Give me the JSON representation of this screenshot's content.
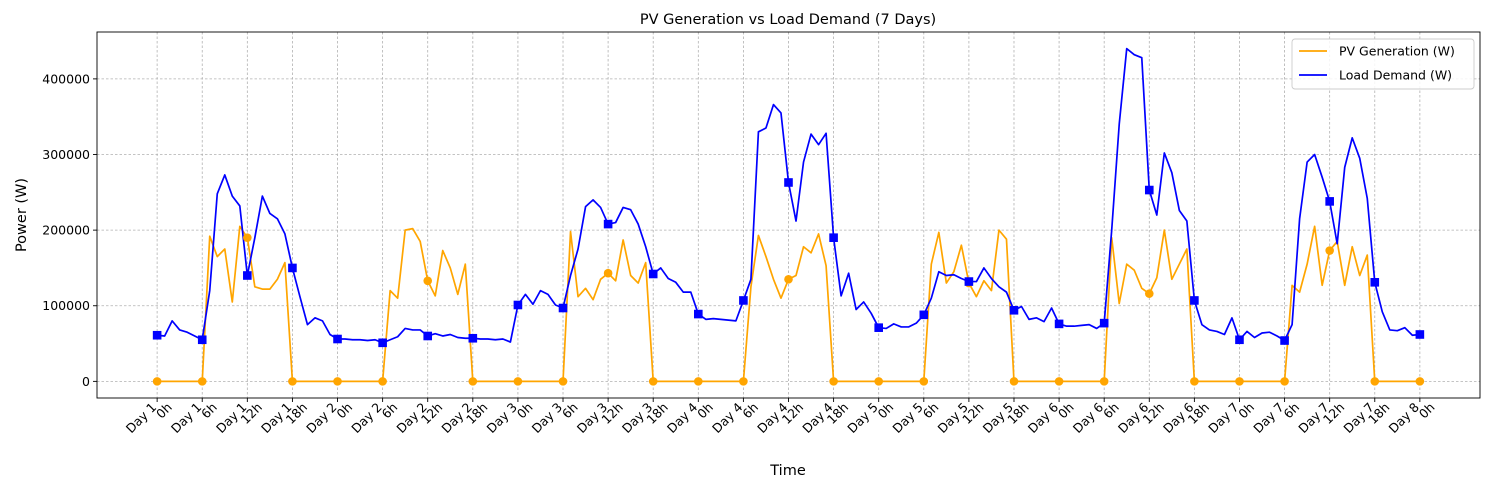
{
  "colors": {
    "pv": "#ffa500",
    "load": "#0000ff",
    "grid": "#b0b0b0"
  },
  "chart_data": {
    "type": "line",
    "title": "PV Generation vs Load Demand (7 Days)",
    "xlabel": "Time",
    "ylabel": "Power (W)",
    "xlim": [
      -8,
      176
    ],
    "ylim": [
      -22000,
      462000
    ],
    "grid": true,
    "legend_position": "top-right",
    "yticks": [
      0,
      100000,
      200000,
      300000,
      400000
    ],
    "ytick_labels": [
      "0",
      "100000",
      "200000",
      "300000",
      "400000"
    ],
    "xticks": [
      0,
      6,
      12,
      18,
      24,
      30,
      36,
      42,
      48,
      54,
      60,
      66,
      72,
      78,
      84,
      90,
      96,
      102,
      108,
      114,
      120,
      126,
      132,
      138,
      144,
      150,
      156,
      162,
      168
    ],
    "xtick_labels": [
      [
        "Day 1",
        "0h"
      ],
      [
        "Day 1",
        "6h"
      ],
      [
        "Day 1",
        "12h"
      ],
      [
        "Day 1",
        "18h"
      ],
      [
        "Day 2",
        "0h"
      ],
      [
        "Day 2",
        "6h"
      ],
      [
        "Day 2",
        "12h"
      ],
      [
        "Day 2",
        "18h"
      ],
      [
        "Day 3",
        "0h"
      ],
      [
        "Day 3",
        "6h"
      ],
      [
        "Day 3",
        "12h"
      ],
      [
        "Day 3",
        "18h"
      ],
      [
        "Day 4",
        "0h"
      ],
      [
        "Day 4",
        "6h"
      ],
      [
        "Day 4",
        "12h"
      ],
      [
        "Day 4",
        "18h"
      ],
      [
        "Day 5",
        "0h"
      ],
      [
        "Day 5",
        "6h"
      ],
      [
        "Day 5",
        "12h"
      ],
      [
        "Day 5",
        "18h"
      ],
      [
        "Day 6",
        "0h"
      ],
      [
        "Day 6",
        "6h"
      ],
      [
        "Day 6",
        "12h"
      ],
      [
        "Day 6",
        "18h"
      ],
      [
        "Day 7",
        "0h"
      ],
      [
        "Day 7",
        "6h"
      ],
      [
        "Day 7",
        "12h"
      ],
      [
        "Day 7",
        "18h"
      ],
      [
        "Day 8",
        "0h"
      ]
    ],
    "series": [
      {
        "name": "PV Generation (W)",
        "color": "#ffa500",
        "marker": "circle",
        "points": [
          [
            0,
            0
          ],
          [
            6,
            0
          ],
          [
            7,
            192000
          ],
          [
            8,
            165000
          ],
          [
            9,
            175000
          ],
          [
            10,
            105000
          ],
          [
            11,
            205000
          ],
          [
            12,
            190000
          ],
          [
            13,
            125000
          ],
          [
            14,
            122000
          ],
          [
            15,
            122000
          ],
          [
            16,
            135000
          ],
          [
            17,
            157000
          ],
          [
            18,
            0
          ],
          [
            24,
            0
          ],
          [
            30,
            0
          ],
          [
            31,
            120000
          ],
          [
            32,
            110000
          ],
          [
            33,
            200000
          ],
          [
            34,
            202000
          ],
          [
            35,
            185000
          ],
          [
            36,
            133000
          ],
          [
            37,
            113000
          ],
          [
            38,
            173000
          ],
          [
            39,
            150000
          ],
          [
            40,
            115000
          ],
          [
            41,
            155000
          ],
          [
            42,
            0
          ],
          [
            48,
            0
          ],
          [
            54,
            0
          ],
          [
            55,
            198000
          ],
          [
            56,
            112000
          ],
          [
            57,
            123000
          ],
          [
            58,
            108000
          ],
          [
            59,
            135000
          ],
          [
            60,
            143000
          ],
          [
            61,
            133000
          ],
          [
            62,
            187000
          ],
          [
            63,
            140000
          ],
          [
            64,
            130000
          ],
          [
            65,
            157000
          ],
          [
            66,
            0
          ],
          [
            72,
            0
          ],
          [
            78,
            0
          ],
          [
            79,
            125000
          ],
          [
            80,
            193000
          ],
          [
            81,
            165000
          ],
          [
            82,
            135000
          ],
          [
            83,
            110000
          ],
          [
            84,
            135000
          ],
          [
            85,
            140000
          ],
          [
            86,
            178000
          ],
          [
            87,
            170000
          ],
          [
            88,
            195000
          ],
          [
            89,
            153000
          ],
          [
            90,
            0
          ],
          [
            96,
            0
          ],
          [
            102,
            0
          ],
          [
            103,
            155000
          ],
          [
            104,
            197000
          ],
          [
            105,
            130000
          ],
          [
            106,
            145000
          ],
          [
            107,
            180000
          ],
          [
            108,
            130000
          ],
          [
            109,
            112000
          ],
          [
            110,
            133000
          ],
          [
            111,
            120000
          ],
          [
            112,
            200000
          ],
          [
            113,
            188000
          ],
          [
            114,
            0
          ],
          [
            120,
            0
          ],
          [
            126,
            0
          ],
          [
            127,
            190000
          ],
          [
            128,
            103000
          ],
          [
            129,
            155000
          ],
          [
            130,
            147000
          ],
          [
            131,
            123000
          ],
          [
            132,
            116000
          ],
          [
            133,
            137000
          ],
          [
            134,
            200000
          ],
          [
            135,
            135000
          ],
          [
            136,
            155000
          ],
          [
            137,
            175000
          ],
          [
            138,
            0
          ],
          [
            144,
            0
          ],
          [
            150,
            0
          ],
          [
            151,
            127000
          ],
          [
            152,
            118000
          ],
          [
            153,
            155000
          ],
          [
            154,
            205000
          ],
          [
            155,
            127000
          ],
          [
            156,
            173000
          ],
          [
            157,
            185000
          ],
          [
            158,
            127000
          ],
          [
            159,
            178000
          ],
          [
            160,
            140000
          ],
          [
            161,
            167000
          ],
          [
            162,
            0
          ],
          [
            168,
            0
          ]
        ],
        "markers_at": [
          0,
          6,
          12,
          18,
          24,
          30,
          36,
          42,
          48,
          54,
          60,
          66,
          72,
          78,
          84,
          90,
          96,
          102,
          108,
          114,
          120,
          126,
          132,
          138,
          144,
          150,
          156,
          162,
          168
        ]
      },
      {
        "name": "Load Demand (W)",
        "color": "#0000ff",
        "marker": "square",
        "points": [
          [
            0,
            61000
          ],
          [
            1,
            60000
          ],
          [
            2,
            80000
          ],
          [
            3,
            68000
          ],
          [
            4,
            65000
          ],
          [
            5,
            60000
          ],
          [
            6,
            55000
          ],
          [
            7,
            120000
          ],
          [
            8,
            248000
          ],
          [
            9,
            273000
          ],
          [
            10,
            245000
          ],
          [
            11,
            232000
          ],
          [
            12,
            140000
          ],
          [
            13,
            190000
          ],
          [
            14,
            245000
          ],
          [
            15,
            222000
          ],
          [
            16,
            215000
          ],
          [
            17,
            195000
          ],
          [
            18,
            150000
          ],
          [
            19,
            112000
          ],
          [
            20,
            75000
          ],
          [
            21,
            84000
          ],
          [
            22,
            80000
          ],
          [
            23,
            62000
          ],
          [
            24,
            56000
          ],
          [
            25,
            56000
          ],
          [
            26,
            55000
          ],
          [
            27,
            55000
          ],
          [
            28,
            54000
          ],
          [
            29,
            55000
          ],
          [
            30,
            51000
          ],
          [
            31,
            55000
          ],
          [
            32,
            59000
          ],
          [
            33,
            70000
          ],
          [
            34,
            68000
          ],
          [
            35,
            68000
          ],
          [
            36,
            60000
          ],
          [
            37,
            63000
          ],
          [
            38,
            60000
          ],
          [
            39,
            62000
          ],
          [
            40,
            58000
          ],
          [
            41,
            57000
          ],
          [
            42,
            57000
          ],
          [
            43,
            56000
          ],
          [
            44,
            56000
          ],
          [
            45,
            55000
          ],
          [
            46,
            56000
          ],
          [
            47,
            52000
          ],
          [
            48,
            101000
          ],
          [
            49,
            115000
          ],
          [
            50,
            102000
          ],
          [
            51,
            120000
          ],
          [
            52,
            115000
          ],
          [
            53,
            101000
          ],
          [
            54,
            97000
          ],
          [
            55,
            140000
          ],
          [
            56,
            175000
          ],
          [
            57,
            231000
          ],
          [
            58,
            240000
          ],
          [
            59,
            230000
          ],
          [
            60,
            208000
          ],
          [
            61,
            210000
          ],
          [
            62,
            230000
          ],
          [
            63,
            227000
          ],
          [
            64,
            208000
          ],
          [
            65,
            178000
          ],
          [
            66,
            142000
          ],
          [
            67,
            150000
          ],
          [
            68,
            136000
          ],
          [
            69,
            131000
          ],
          [
            70,
            118000
          ],
          [
            71,
            118000
          ],
          [
            72,
            89000
          ],
          [
            73,
            82000
          ],
          [
            74,
            83000
          ],
          [
            75,
            82000
          ],
          [
            76,
            81000
          ],
          [
            77,
            80000
          ],
          [
            78,
            107000
          ],
          [
            79,
            135000
          ],
          [
            80,
            330000
          ],
          [
            81,
            335000
          ],
          [
            82,
            366000
          ],
          [
            83,
            355000
          ],
          [
            84,
            263000
          ],
          [
            85,
            212000
          ],
          [
            86,
            290000
          ],
          [
            87,
            327000
          ],
          [
            88,
            313000
          ],
          [
            89,
            328000
          ],
          [
            90,
            190000
          ],
          [
            91,
            113000
          ],
          [
            92,
            143000
          ],
          [
            93,
            95000
          ],
          [
            94,
            105000
          ],
          [
            95,
            90000
          ],
          [
            96,
            71000
          ],
          [
            97,
            70000
          ],
          [
            98,
            76000
          ],
          [
            99,
            72000
          ],
          [
            100,
            72000
          ],
          [
            101,
            77000
          ],
          [
            102,
            88000
          ],
          [
            103,
            110000
          ],
          [
            104,
            145000
          ],
          [
            105,
            140000
          ],
          [
            106,
            141000
          ],
          [
            107,
            136000
          ],
          [
            108,
            132000
          ],
          [
            109,
            132000
          ],
          [
            110,
            150000
          ],
          [
            111,
            136000
          ],
          [
            112,
            125000
          ],
          [
            113,
            118000
          ],
          [
            114,
            94000
          ],
          [
            115,
            99000
          ],
          [
            116,
            82000
          ],
          [
            117,
            84000
          ],
          [
            118,
            79000
          ],
          [
            119,
            97000
          ],
          [
            120,
            76000
          ],
          [
            121,
            73000
          ],
          [
            122,
            73000
          ],
          [
            123,
            74000
          ],
          [
            124,
            75000
          ],
          [
            125,
            70000
          ],
          [
            126,
            77000
          ],
          [
            127,
            200000
          ],
          [
            128,
            340000
          ],
          [
            129,
            440000
          ],
          [
            130,
            432000
          ],
          [
            131,
            428000
          ],
          [
            132,
            253000
          ],
          [
            133,
            220000
          ],
          [
            134,
            302000
          ],
          [
            135,
            276000
          ],
          [
            136,
            226000
          ],
          [
            137,
            212000
          ],
          [
            138,
            107000
          ],
          [
            139,
            75000
          ],
          [
            140,
            68000
          ],
          [
            141,
            66000
          ],
          [
            142,
            62000
          ],
          [
            143,
            84000
          ],
          [
            144,
            55000
          ],
          [
            145,
            66000
          ],
          [
            146,
            58000
          ],
          [
            147,
            64000
          ],
          [
            148,
            65000
          ],
          [
            149,
            60000
          ],
          [
            150,
            54000
          ],
          [
            151,
            75000
          ],
          [
            152,
            215000
          ],
          [
            153,
            290000
          ],
          [
            154,
            300000
          ],
          [
            155,
            270000
          ],
          [
            156,
            238000
          ],
          [
            157,
            182000
          ],
          [
            158,
            283000
          ],
          [
            159,
            322000
          ],
          [
            160,
            295000
          ],
          [
            161,
            242000
          ],
          [
            162,
            131000
          ],
          [
            163,
            92000
          ],
          [
            164,
            68000
          ],
          [
            165,
            67000
          ],
          [
            166,
            71000
          ],
          [
            167,
            61000
          ],
          [
            168,
            62000
          ]
        ],
        "markers_at": [
          0,
          6,
          12,
          18,
          24,
          30,
          36,
          42,
          48,
          54,
          60,
          66,
          72,
          78,
          84,
          90,
          96,
          102,
          108,
          114,
          120,
          126,
          132,
          138,
          144,
          150,
          156,
          162,
          168
        ]
      }
    ]
  }
}
